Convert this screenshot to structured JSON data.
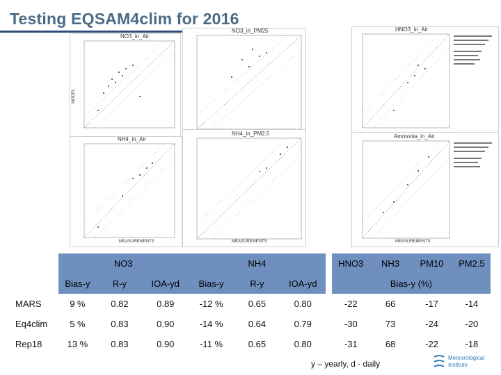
{
  "title": "Testing EQSAM4clim for 2016",
  "plots": [
    {
      "title": "NO3_in_Air"
    },
    {
      "title": "NO3_in_PM25"
    },
    {
      "title": "HNO3_in_Air"
    },
    {
      "title": "NH4_in_Air"
    },
    {
      "title": "NH4_in_PM2.5"
    },
    {
      "title": "Ammonia_in_Air"
    }
  ],
  "axis": {
    "y_label": "MODEL",
    "x_label": "MEASUREMENTS"
  },
  "table": {
    "groups": [
      "NO3",
      "NH4",
      "HNO3",
      "NH3",
      "PM10",
      "PM2.5"
    ],
    "subheaders": [
      "Bias-y",
      "R-y",
      "IOA-yd",
      "Bias-y",
      "R-y",
      "IOA-yd"
    ],
    "bias_header": "Bias-y (%)",
    "rows": [
      {
        "label": "MARS",
        "cells": [
          "9 %",
          "0.82",
          "0.89",
          "-12 %",
          "0.65",
          "0.80",
          "-22",
          "66",
          "-17",
          "-14"
        ]
      },
      {
        "label": "Eq4clim",
        "cells": [
          "5 %",
          "0.83",
          "0.90",
          "-14 %",
          "0.64",
          "0.79",
          "-30",
          "73",
          "-24",
          "-20"
        ]
      },
      {
        "label": "Rep18",
        "cells": [
          "13 %",
          "0.83",
          "0.90",
          "-11 %",
          "0.65",
          "0.80",
          "-31",
          "68",
          "-22",
          "-18"
        ]
      }
    ]
  },
  "footnote": "y – yearly,  d - daily",
  "logo": {
    "line1": "Meteorological",
    "line2": "Institute",
    "color": "#2f7bb8"
  },
  "colors": {
    "header": "#6f8fbf",
    "title": "#4a6b86",
    "rule": "#2e4c7a"
  }
}
